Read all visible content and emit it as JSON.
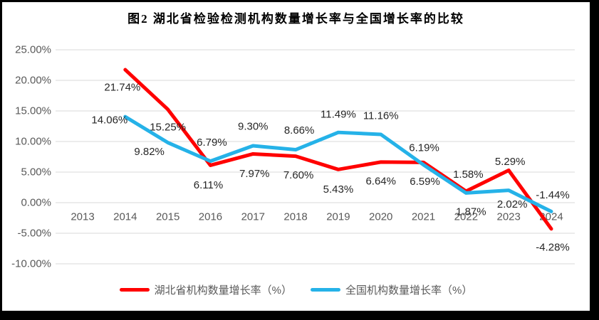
{
  "chart_data": {
    "type": "line",
    "title": "图2  湖北省检验检测机构数量增长率与全国增长率的比较",
    "categories": [
      "2013",
      "2014",
      "2015",
      "2016",
      "2017",
      "2018",
      "2019",
      "2020",
      "2021",
      "2022",
      "2023",
      "2024"
    ],
    "series": [
      {
        "name": "湖北省机构数量增长率（%）",
        "key": "hubei",
        "color": "#FF0000",
        "values": [
          null,
          21.74,
          15.25,
          6.11,
          7.97,
          7.6,
          5.43,
          6.64,
          6.59,
          1.87,
          5.29,
          -4.28
        ],
        "data_labels": [
          "",
          "21.74%",
          "15.25%",
          "6.11%",
          "7.97%",
          "7.60%",
          "5.43%",
          "6.64%",
          "6.59%",
          "1.87%",
          "5.29%",
          "-4.28%"
        ],
        "label_offsets": [
          [
            0,
            0
          ],
          [
            -4,
            25
          ],
          [
            0,
            25
          ],
          [
            -3,
            28
          ],
          [
            2,
            28
          ],
          [
            4,
            27
          ],
          [
            0,
            28
          ],
          [
            0,
            27
          ],
          [
            2,
            27
          ],
          [
            7,
            29
          ],
          [
            2,
            -12
          ],
          [
            2,
            26
          ]
        ]
      },
      {
        "name": "全国机构数量增长率（%）",
        "key": "national",
        "color": "#25B2E8",
        "values": [
          null,
          14.06,
          9.82,
          6.79,
          9.3,
          8.66,
          11.49,
          11.16,
          6.19,
          1.58,
          2.02,
          -1.44
        ],
        "data_labels": [
          "",
          "14.06%",
          "9.82%",
          "6.79%",
          "9.30%",
          "8.66%",
          "11.49%",
          "11.16%",
          "6.19%",
          "1.58%",
          "2.02%",
          "-1.44%"
        ],
        "label_offsets": [
          [
            0,
            0
          ],
          [
            -22,
            5
          ],
          [
            -26,
            13
          ],
          [
            2,
            -26
          ],
          [
            0,
            -27
          ],
          [
            5,
            -27
          ],
          [
            0,
            -25
          ],
          [
            0,
            -26
          ],
          [
            1,
            -24
          ],
          [
            3,
            -26
          ],
          [
            5,
            20
          ],
          [
            2,
            -23
          ]
        ]
      }
    ],
    "y_axis": {
      "min": -10,
      "max": 25,
      "step": 5,
      "tick_values": [
        25,
        20,
        15,
        10,
        5,
        0,
        -5,
        -10
      ],
      "tick_labels": [
        "25.00%",
        "20.00%",
        "15.00%",
        "10.00%",
        "5.00%",
        "0.00%",
        "-5.00%",
        "-10.00%"
      ]
    },
    "xlabel": "",
    "ylabel": "",
    "grid": true,
    "legend_position": "bottom"
  },
  "colors": {
    "hubei_line": "#FF0000",
    "national_line": "#25B2E8",
    "gridline": "#D9D9D9",
    "axis_text": "#595959",
    "data_label_text": "#262626",
    "title_text": "#000000",
    "frame": "#000000",
    "background": "#FFFFFF"
  }
}
